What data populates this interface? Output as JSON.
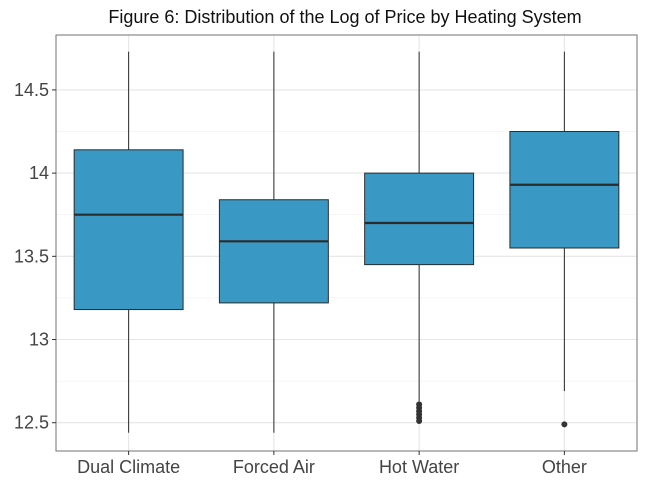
{
  "chart_data": {
    "type": "box",
    "title": "Figure 6: Distribution of the Log of Price by Heating System",
    "xlabel": "",
    "ylabel": "",
    "categories": [
      "Dual Climate",
      "Forced Air",
      "Hot Water",
      "Other"
    ],
    "series": [
      {
        "stats": [
          {
            "category": "Dual Climate",
            "whisker_low": 12.44,
            "q1": 13.18,
            "median": 13.75,
            "q3": 14.14,
            "whisker_high": 14.73,
            "outliers": []
          },
          {
            "category": "Forced Air",
            "whisker_low": 12.44,
            "q1": 13.22,
            "median": 13.59,
            "q3": 13.84,
            "whisker_high": 14.73,
            "outliers": []
          },
          {
            "category": "Hot Water",
            "whisker_low": 12.63,
            "q1": 13.45,
            "median": 13.7,
            "q3": 14.0,
            "whisker_high": 14.73,
            "outliers": [
              12.61,
              12.59,
              12.57,
              12.55,
              12.53,
              12.51
            ]
          },
          {
            "category": "Other",
            "whisker_low": 12.69,
            "q1": 13.55,
            "median": 13.93,
            "q3": 14.25,
            "whisker_high": 14.73,
            "outliers": [
              12.49
            ]
          }
        ]
      }
    ],
    "yticks": [
      12.5,
      13,
      13.5,
      14,
      14.5
    ],
    "ytick_labels": [
      "12.5",
      "13",
      "13.5",
      "14",
      "14.5"
    ],
    "ylim": [
      12.33,
      14.83
    ],
    "grid": true,
    "legend": "none",
    "colors": {
      "box_fill": "#3a99c4",
      "box_stroke": "#2b2b2b",
      "grid": "#e6e6e6",
      "panel_border": "#7f7f7f"
    }
  }
}
